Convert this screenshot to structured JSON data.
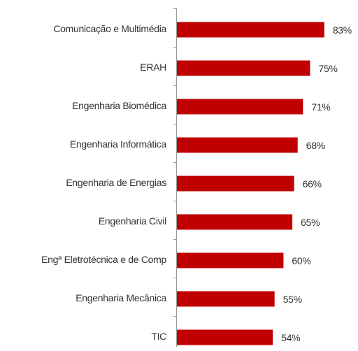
{
  "chart_data": {
    "type": "bar",
    "orientation": "horizontal",
    "categories": [
      "Comunicação e Multimédia",
      "ERAH",
      "Engenharia Biomédica",
      "Engenharia Informática",
      "Engenharia de Energias",
      "Engenharia Civil",
      "Engª Eletrotécnica e de Comp",
      "Engenharia Mecânica",
      "TIC"
    ],
    "values": [
      83,
      75,
      71,
      68,
      66,
      65,
      60,
      55,
      54
    ],
    "value_labels": [
      "83%",
      "75%",
      "71%",
      "68%",
      "66%",
      "65%",
      "60%",
      "55%",
      "54%"
    ],
    "color": "#c00000"
  }
}
